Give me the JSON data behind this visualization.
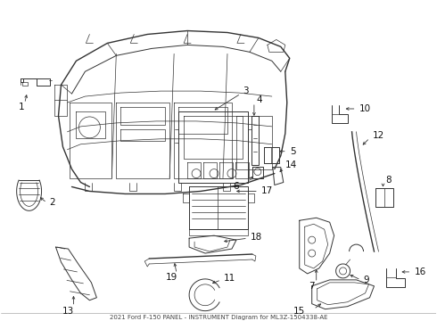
{
  "title": "2021 Ford F-150 PANEL - INSTRUMENT Diagram for ML3Z-1504338-AE",
  "bg": "#ffffff",
  "lc": "#333333",
  "fig_w": 4.9,
  "fig_h": 3.6,
  "dpi": 100,
  "label_fs": 7.5,
  "label_color": "#111111"
}
